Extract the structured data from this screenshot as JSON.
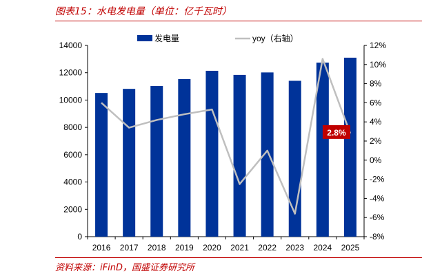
{
  "figure": {
    "title": "图表15：水电发电量（单位：亿千瓦时）",
    "source": "资料来源：iFinD，国盛证券研究所"
  },
  "chart_data": {
    "type": "bar",
    "categories": [
      "2016",
      "2017",
      "2018",
      "2019",
      "2020",
      "2021",
      "2022",
      "2023",
      "2024",
      "2025"
    ],
    "series": [
      {
        "name": "发电量",
        "type": "bar",
        "axis": "left",
        "color": "#003399",
        "values": [
          10518,
          10819,
          11027,
          11534,
          12140,
          11840,
          12020,
          11409,
          12742,
          13100
        ]
      },
      {
        "name": "yoy（右轴）",
        "type": "line",
        "axis": "right",
        "color": "#bfbfbf",
        "values": [
          6.0,
          3.4,
          4.2,
          4.8,
          5.3,
          -2.5,
          1.0,
          -5.6,
          10.6,
          2.8
        ]
      }
    ],
    "y_left": {
      "min": 0,
      "max": 14000,
      "ticks": [
        "0",
        "2000",
        "4000",
        "6000",
        "8000",
        "10000",
        "12000",
        "14000"
      ]
    },
    "y_right": {
      "min": -8,
      "max": 12,
      "ticks": [
        "-8%",
        "-6%",
        "-4%",
        "-2%",
        "0%",
        "2%",
        "4%",
        "6%",
        "8%",
        "10%",
        "12%"
      ]
    },
    "annotation": {
      "text": "2.8%",
      "category": "2025",
      "color": "#c00000"
    },
    "legend_position": "top",
    "grid": false
  }
}
